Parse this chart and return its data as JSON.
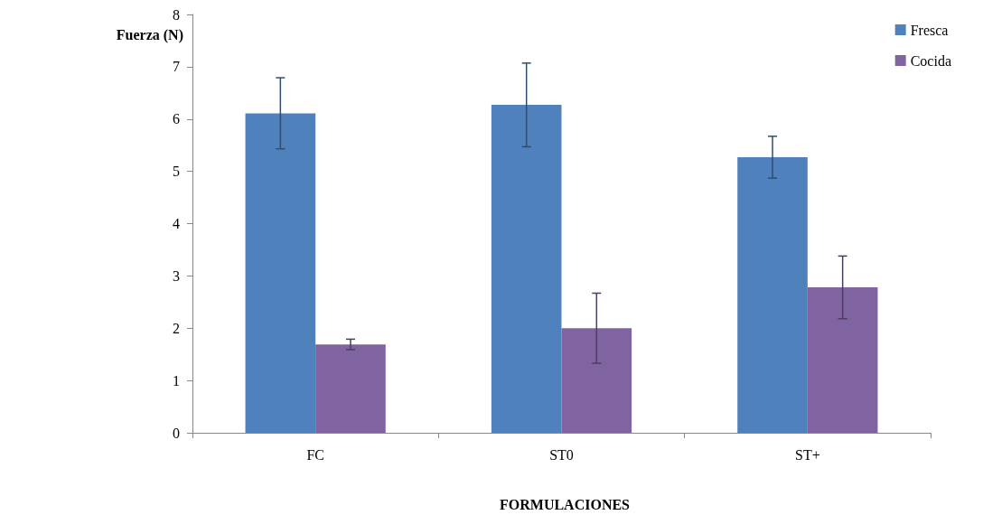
{
  "chart_data": {
    "type": "bar",
    "xlabel": "FORMULACIONES",
    "ylabel": "Fuerza (N)",
    "categories": [
      "FC",
      "ST0",
      "ST+"
    ],
    "series": [
      {
        "name": "Fresca",
        "color": "#4f81bd",
        "values": [
          6.11,
          6.27,
          5.27
        ],
        "errors": [
          0.68,
          0.8,
          0.4
        ]
      },
      {
        "name": "Cocida",
        "color": "#8064a2",
        "values": [
          1.69,
          2.0,
          2.78
        ],
        "errors": [
          0.1,
          0.67,
          0.6
        ]
      }
    ],
    "ylim": [
      0,
      8
    ],
    "yticks": [
      0,
      1,
      2,
      3,
      4,
      5,
      6,
      7,
      8
    ],
    "grid": false,
    "legend": "top right"
  }
}
